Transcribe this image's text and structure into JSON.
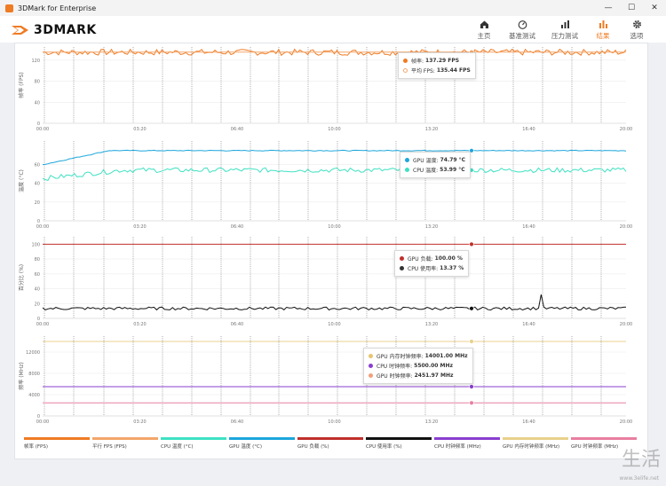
{
  "window": {
    "title": "3DMark for Enterprise",
    "minimize": "—",
    "maximize": "☐",
    "close": "✕"
  },
  "app": {
    "logo_text": "3DMARK",
    "nav": [
      {
        "label": "主页",
        "icon": "home-icon"
      },
      {
        "label": "基准测试",
        "icon": "gauge-icon"
      },
      {
        "label": "压力测试",
        "icon": "stress-chart-icon"
      },
      {
        "label": "结果",
        "icon": "results-bars-icon",
        "active": true
      },
      {
        "label": "选项",
        "icon": "gear-icon"
      }
    ],
    "accent": "#ef7b23"
  },
  "chart_data": [
    {
      "type": "line",
      "ylabel": "帧率 (FPS)",
      "yticks": [
        "0",
        "40",
        "80",
        "120"
      ],
      "ylim": [
        0,
        145
      ],
      "x_ticks": [
        "00:00",
        "03:20",
        "06:40",
        "10:00",
        "13:20",
        "16:40",
        "20:00"
      ],
      "series": [
        {
          "name": "帧率",
          "color": "#ef7b23",
          "level": 135
        },
        {
          "name": "平均 FPS",
          "color": "#f3a66a",
          "level": 135.44
        }
      ],
      "tooltip": [
        {
          "label": "帧率:",
          "value": "137.29 FPS",
          "color": "#ef7b23"
        },
        {
          "label": "平均 FPS:",
          "value": "135.44 FPS",
          "color": "#f7c89f",
          "hollow": true
        }
      ]
    },
    {
      "type": "line",
      "ylabel": "温度 (°C)",
      "yticks": [
        "0",
        "20",
        "40",
        "60"
      ],
      "ylim": [
        0,
        85
      ],
      "x_ticks": [
        "00:00",
        "03:20",
        "06:40",
        "10:00",
        "13:20",
        "16:40",
        "20:00"
      ],
      "series": [
        {
          "name": "GPU 温度",
          "color": "#1da6dc",
          "level": 74.79
        },
        {
          "name": "CPU 温度",
          "color": "#3ee1c2",
          "level": 53.99
        }
      ],
      "tooltip": [
        {
          "label": "GPU 温度:",
          "value": "74.79 °C",
          "color": "#1da6dc"
        },
        {
          "label": "CPU 温度:",
          "value": "53.99 °C",
          "color": "#3ee1c2"
        }
      ]
    },
    {
      "type": "line",
      "ylabel": "百分比 (%)",
      "yticks": [
        "0",
        "20",
        "40",
        "60",
        "80",
        "100"
      ],
      "ylim": [
        0,
        110
      ],
      "x_ticks": [
        "00:00",
        "03:20",
        "06:40",
        "10:00",
        "13:20",
        "16:40",
        "20:00"
      ],
      "series": [
        {
          "name": "GPU 负载",
          "color": "#c0302c",
          "level": 100
        },
        {
          "name": "CPU 使用率",
          "color": "#111111",
          "level": 13.37
        }
      ],
      "tooltip": [
        {
          "label": "GPU 负载:",
          "value": "100.00 %",
          "color": "#c0302c"
        },
        {
          "label": "CPU 使用率:",
          "value": "13.37 %",
          "color": "#333333"
        }
      ]
    },
    {
      "type": "line",
      "ylabel": "频率 (MHz)",
      "yticks": [
        "0",
        "4000",
        "8000",
        "12000"
      ],
      "ylim": [
        0,
        15000
      ],
      "x_ticks": [
        "00:00",
        "03:20",
        "06:40",
        "10:00",
        "13:20",
        "16:40",
        "20:00"
      ],
      "series": [
        {
          "name": "GPU 内存时钟频率",
          "color": "#e8d18c",
          "level": 14001
        },
        {
          "name": "CPU 时钟频率",
          "color": "#8a3fd0",
          "level": 5500
        },
        {
          "name": "GPU 时钟频率",
          "color": "#e87fa0",
          "level": 2451.97
        }
      ],
      "tooltip": [
        {
          "label": "GPU 内存时钟频率:",
          "value": "14001.00 MHz",
          "color": "#e8c46f"
        },
        {
          "label": "CPU 时钟频率:",
          "value": "5500.00 MHz",
          "color": "#8a3fd0"
        },
        {
          "label": "GPU 时钟频率:",
          "value": "2451.97 MHz",
          "color": "#f1a07a"
        }
      ]
    }
  ],
  "legend": [
    {
      "label": "帧率 (FPS)",
      "color": "#ef7b23"
    },
    {
      "label": "平行 FPS (FPS)",
      "color": "#f3a66a"
    },
    {
      "label": "CPU 温度 (°C)",
      "color": "#3ee1c2"
    },
    {
      "label": "GPU 温度 (°C)",
      "color": "#1da6dc"
    },
    {
      "label": "GPU 负载 (%)",
      "color": "#c0302c"
    },
    {
      "label": "CPU 使用率 (%)",
      "color": "#111111"
    },
    {
      "label": "CPU 时钟频率 (MHz)",
      "color": "#8a3fd0"
    },
    {
      "label": "GPU 内存时钟频率 (MHz)",
      "color": "#e8d18c"
    },
    {
      "label": "GPU 时钟频率 (MHz)",
      "color": "#e87fa0"
    }
  ],
  "watermark": {
    "text": "生活",
    "url": "www.3elife.net"
  }
}
